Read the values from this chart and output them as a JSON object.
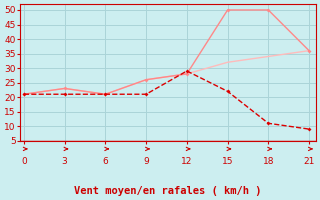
{
  "xlabel": "Vent moyen/en rafales ( km/h )",
  "bg_color": "#cceef0",
  "grid_color": "#aad4d8",
  "x_ticks": [
    0,
    3,
    6,
    9,
    12,
    15,
    18,
    21
  ],
  "ylim": [
    5,
    52
  ],
  "xlim": [
    -0.3,
    21.5
  ],
  "y_ticks": [
    5,
    10,
    15,
    20,
    25,
    30,
    35,
    40,
    45,
    50
  ],
  "line1_x": [
    0,
    3,
    6,
    9,
    12,
    15,
    18,
    21
  ],
  "line1_y": [
    21,
    21,
    21,
    21,
    29,
    22,
    11,
    9
  ],
  "line1_color": "#dd0000",
  "line2_x": [
    0,
    3,
    6,
    9,
    12,
    15,
    18,
    21
  ],
  "line2_y": [
    21,
    23,
    21,
    26,
    28,
    50,
    50,
    36
  ],
  "line2_color": "#ff8888",
  "line3_x": [
    0,
    3,
    6,
    9,
    12,
    15,
    18,
    21
  ],
  "line3_y": [
    21,
    23,
    21,
    26,
    28,
    32,
    34,
    36
  ],
  "line3_color": "#ffbbbb",
  "arrow_color": "#cc0000",
  "xlabel_color": "#cc0000",
  "xlabel_fontsize": 7.5,
  "tick_fontsize": 6.5,
  "tick_color": "#cc0000",
  "spine_color": "#cc0000"
}
